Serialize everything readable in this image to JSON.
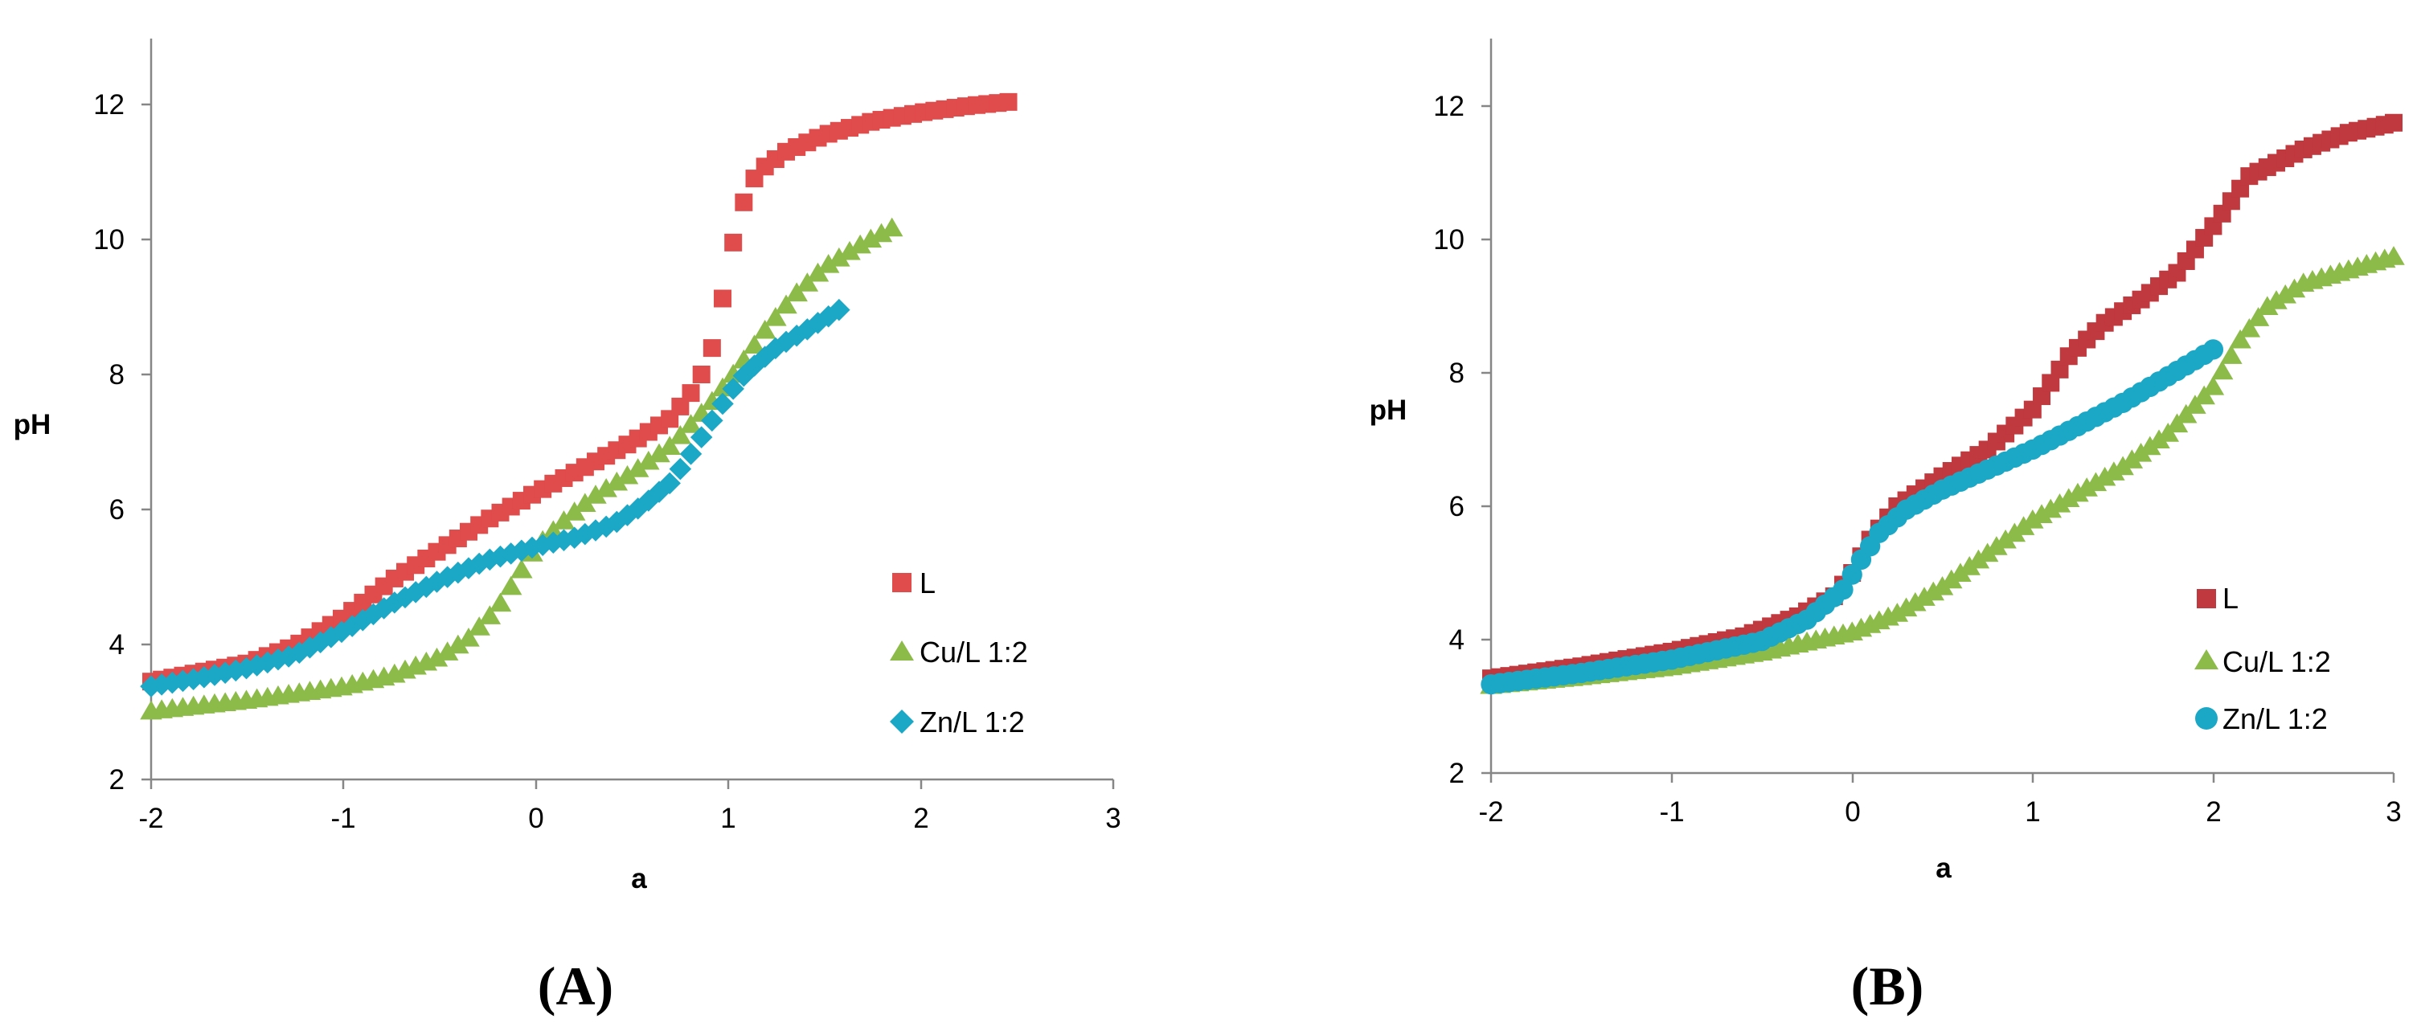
{
  "colors": {
    "L": "#E04B4B",
    "Cu": "#8DBB4A",
    "Zn": "#1BA8C6",
    "L_B": "#C0393E",
    "axis": "#868686"
  },
  "chart_data": [
    {
      "type": "scatter",
      "panel": "(A)",
      "title": "",
      "xlabel": "a",
      "ylabel": "pH",
      "xlim": [
        -2,
        3
      ],
      "ylim": [
        2,
        13
      ],
      "xticks": [
        "-2",
        "-1",
        "0",
        "1",
        "2",
        "3"
      ],
      "yticks": [
        "2",
        "4",
        "6",
        "8",
        "10",
        "12"
      ],
      "grid": false,
      "legend_position": "right",
      "series": [
        {
          "name": "L",
          "marker": "square",
          "color": "#E04B4B",
          "points": [
            [
              -2,
              3.45
            ],
            [
              -1.5,
              3.72
            ],
            [
              -1.25,
              3.98
            ],
            [
              -1,
              4.4
            ],
            [
              -0.75,
              4.95
            ],
            [
              -0.5,
              5.4
            ],
            [
              -0.25,
              5.85
            ],
            [
              0,
              6.25
            ],
            [
              0.25,
              6.62
            ],
            [
              0.5,
              7.0
            ],
            [
              0.7,
              7.35
            ],
            [
              0.8,
              7.7
            ],
            [
              0.88,
              8.1
            ],
            [
              0.94,
              8.6
            ],
            [
              0.98,
              9.3
            ],
            [
              1.02,
              9.9
            ],
            [
              1.08,
              10.55
            ],
            [
              1.15,
              11.0
            ],
            [
              1.3,
              11.3
            ],
            [
              1.5,
              11.55
            ],
            [
              1.75,
              11.75
            ],
            [
              2.0,
              11.88
            ],
            [
              2.25,
              11.98
            ],
            [
              2.5,
              12.05
            ]
          ]
        },
        {
          "name": "Cu/L 1:2",
          "marker": "triangle",
          "color": "#8DBB4A",
          "points": [
            [
              -2,
              3.02
            ],
            [
              -1.5,
              3.18
            ],
            [
              -1,
              3.38
            ],
            [
              -0.75,
              3.55
            ],
            [
              -0.5,
              3.82
            ],
            [
              -0.35,
              4.1
            ],
            [
              -0.2,
              4.55
            ],
            [
              -0.1,
              5.0
            ],
            [
              0,
              5.45
            ],
            [
              0.15,
              5.85
            ],
            [
              0.3,
              6.2
            ],
            [
              0.5,
              6.55
            ],
            [
              0.7,
              6.95
            ],
            [
              0.9,
              7.55
            ],
            [
              1.05,
              8.1
            ],
            [
              1.2,
              8.7
            ],
            [
              1.35,
              9.2
            ],
            [
              1.5,
              9.6
            ],
            [
              1.7,
              9.95
            ],
            [
              1.9,
              10.25
            ]
          ]
        },
        {
          "name": "Zn/L 1:2",
          "marker": "diamond",
          "color": "#1BA8C6",
          "points": [
            [
              -2,
              3.38
            ],
            [
              -1.75,
              3.5
            ],
            [
              -1.5,
              3.65
            ],
            [
              -1.25,
              3.85
            ],
            [
              -1,
              4.2
            ],
            [
              -0.75,
              4.6
            ],
            [
              -0.5,
              4.95
            ],
            [
              -0.25,
              5.25
            ],
            [
              0,
              5.45
            ],
            [
              0.2,
              5.58
            ],
            [
              0.4,
              5.78
            ],
            [
              0.55,
              6.05
            ],
            [
              0.7,
              6.4
            ],
            [
              0.8,
              6.8
            ],
            [
              0.9,
              7.25
            ],
            [
              1.0,
              7.7
            ],
            [
              1.1,
              8.05
            ],
            [
              1.25,
              8.4
            ],
            [
              1.4,
              8.65
            ],
            [
              1.6,
              9.0
            ]
          ]
        }
      ],
      "legend": [
        "L",
        "Cu/L 1:2",
        "Zn/L 1:2"
      ]
    },
    {
      "type": "scatter",
      "panel": "(B)",
      "title": "",
      "xlabel": "a",
      "ylabel": "pH",
      "xlim": [
        -2,
        3
      ],
      "ylim": [
        2,
        13
      ],
      "xticks": [
        "-2",
        "-1",
        "0",
        "1",
        "2",
        "3"
      ],
      "yticks": [
        "2",
        "4",
        "6",
        "8",
        "10",
        "12"
      ],
      "grid": false,
      "legend_position": "right",
      "series": [
        {
          "name": "L",
          "marker": "square",
          "color": "#C0393E",
          "points": [
            [
              -2,
              3.42
            ],
            [
              -1.5,
              3.6
            ],
            [
              -1,
              3.82
            ],
            [
              -0.6,
              4.05
            ],
            [
              -0.3,
              4.35
            ],
            [
              -0.1,
              4.65
            ],
            [
              0,
              5.0
            ],
            [
              0.1,
              5.5
            ],
            [
              0.25,
              6.0
            ],
            [
              0.5,
              6.45
            ],
            [
              0.75,
              6.85
            ],
            [
              1.0,
              7.45
            ],
            [
              1.2,
              8.25
            ],
            [
              1.4,
              8.75
            ],
            [
              1.6,
              9.1
            ],
            [
              1.8,
              9.5
            ],
            [
              2.0,
              10.2
            ],
            [
              2.2,
              10.95
            ],
            [
              2.5,
              11.35
            ],
            [
              2.75,
              11.6
            ],
            [
              3.0,
              11.75
            ]
          ]
        },
        {
          "name": "Cu/L 1:2",
          "marker": "triangle",
          "color": "#8DBB4A",
          "points": [
            [
              -2,
              3.32
            ],
            [
              -1.5,
              3.45
            ],
            [
              -1,
              3.6
            ],
            [
              -0.5,
              3.82
            ],
            [
              0,
              4.12
            ],
            [
              0.25,
              4.4
            ],
            [
              0.5,
              4.8
            ],
            [
              0.75,
              5.3
            ],
            [
              1.0,
              5.8
            ],
            [
              1.25,
              6.2
            ],
            [
              1.5,
              6.6
            ],
            [
              1.75,
              7.1
            ],
            [
              2.0,
              7.8
            ],
            [
              2.15,
              8.5
            ],
            [
              2.3,
              9.0
            ],
            [
              2.5,
              9.35
            ],
            [
              2.75,
              9.55
            ],
            [
              3.0,
              9.75
            ]
          ]
        },
        {
          "name": "Zn/L 1:2",
          "marker": "circle",
          "color": "#1BA8C6",
          "points": [
            [
              -2,
              3.33
            ],
            [
              -1.5,
              3.5
            ],
            [
              -1,
              3.7
            ],
            [
              -0.5,
              3.98
            ],
            [
              -0.25,
              4.3
            ],
            [
              -0.05,
              4.75
            ],
            [
              0.05,
              5.2
            ],
            [
              0.15,
              5.6
            ],
            [
              0.3,
              5.95
            ],
            [
              0.5,
              6.25
            ],
            [
              0.75,
              6.55
            ],
            [
              1.0,
              6.85
            ],
            [
              1.25,
              7.2
            ],
            [
              1.5,
              7.55
            ],
            [
              1.75,
              7.95
            ],
            [
              2.0,
              8.35
            ]
          ]
        }
      ],
      "legend": [
        "L",
        "Cu/L 1:2",
        "Zn/L 1:2"
      ]
    }
  ]
}
